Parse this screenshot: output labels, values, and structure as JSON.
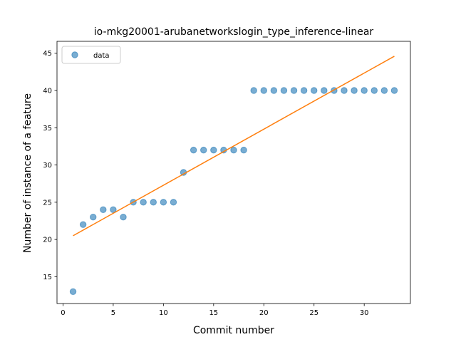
{
  "chart_data": {
    "type": "scatter",
    "title": "io-mkg20001-arubanetworkslogin_type_inference-linear",
    "xlabel": "Commit number",
    "ylabel": "Number of instance of a feature",
    "xlim": [
      -0.6,
      34.6
    ],
    "ylim": [
      11.4,
      46.6
    ],
    "xticks": [
      0,
      5,
      10,
      15,
      20,
      25,
      30
    ],
    "yticks": [
      15,
      20,
      25,
      30,
      35,
      40,
      45
    ],
    "legend": {
      "position": "upper-left",
      "entries": [
        "data"
      ]
    },
    "grid": false,
    "series": [
      {
        "name": "data",
        "kind": "scatter",
        "color": "#1f77b4",
        "x": [
          1,
          2,
          3,
          4,
          5,
          6,
          7,
          8,
          9,
          10,
          11,
          12,
          13,
          14,
          15,
          16,
          17,
          18,
          19,
          20,
          21,
          22,
          23,
          24,
          25,
          26,
          27,
          28,
          29,
          30,
          31,
          32,
          33
        ],
        "y": [
          13,
          22,
          23,
          24,
          24,
          23,
          25,
          25,
          25,
          25,
          25,
          29,
          32,
          32,
          32,
          32,
          32,
          32,
          40,
          40,
          40,
          40,
          40,
          40,
          40,
          40,
          40,
          40,
          40,
          40,
          40,
          40,
          40
        ]
      },
      {
        "kind": "line",
        "color": "#ff7f0e",
        "x": [
          1,
          33
        ],
        "y": [
          20.5,
          44.6
        ]
      }
    ]
  }
}
